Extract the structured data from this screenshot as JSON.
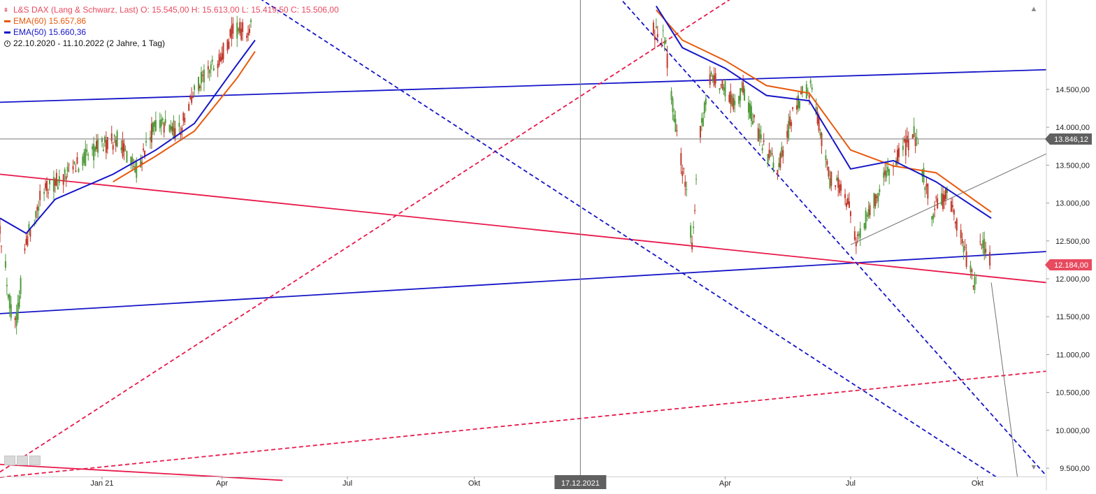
{
  "legend": {
    "main": "L&S DAX (Lang & Schwarz, Last)  O: 15.545,00  H: 15.613,00  L: 15.419,50  C: 15.506,00",
    "ema60": "EMA(60)  15.657,86",
    "ema50": "EMA(50)  15.660,36",
    "range": "22.10.2020 - 11.10.2022  (2 Jahre, 1 Tag)"
  },
  "colors": {
    "up": "#4f9a3b",
    "down": "#c0392b",
    "ema60": "#e8590c",
    "ema50": "#1515c8",
    "red_line": "#e8194b",
    "blue_line": "#1515c8",
    "gray_line": "#707070"
  },
  "icons": {
    "ohlc": "candlestick-icon",
    "range": "clock-icon",
    "scroll_up": "scroll-up-icon",
    "scroll_down": "scroll-down-icon"
  },
  "chart_data": {
    "type": "candlestick",
    "title": "L&S DAX (Lang & Schwarz, Last)",
    "y_axis": {
      "range": [
        9390,
        15680
      ],
      "ticks": [
        "9.500,00",
        "10.000,00",
        "10.500,00",
        "11.000,00",
        "11.500,00",
        "12.000,00",
        "12.500,00",
        "13.000,00",
        "13.500,00",
        "14.000,00",
        "14.500,00"
      ],
      "tick_values": [
        9500,
        10000,
        10500,
        11000,
        11500,
        12000,
        12500,
        13000,
        13500,
        14000,
        14500
      ],
      "side": "right"
    },
    "x_axis": {
      "range": [
        "2020-10-22",
        "2022-11-20"
      ],
      "ticks": [
        {
          "label": "Jan 21",
          "date": "2021-01-04"
        },
        {
          "label": "Apr",
          "date": "2021-04-01"
        },
        {
          "label": "Jul",
          "date": "2021-07-01"
        },
        {
          "label": "Okt",
          "date": "2021-10-01"
        },
        {
          "label": "Apr",
          "date": "2022-04-01"
        },
        {
          "label": "Jul",
          "date": "2022-07-01"
        },
        {
          "label": "Okt",
          "date": "2022-10-01"
        }
      ]
    },
    "crosshair": {
      "date": "2021-12-17",
      "date_label": "17.12.2021",
      "price": 13846.12,
      "price_label": "13.846,12"
    },
    "last_price": {
      "value": 12184.0,
      "label": "12.184,00"
    },
    "price_path": [
      [
        "2020-10-22",
        12700
      ],
      [
        "2020-10-30",
        11550
      ],
      [
        "2020-11-03",
        11420
      ],
      [
        "2020-11-10",
        12500
      ],
      [
        "2020-11-24",
        13250
      ],
      [
        "2020-12-04",
        13280
      ],
      [
        "2020-12-31",
        13720
      ],
      [
        "2021-01-15",
        13850
      ],
      [
        "2021-01-29",
        13450
      ],
      [
        "2021-02-12",
        14050
      ],
      [
        "2021-03-01",
        13950
      ],
      [
        "2021-03-12",
        14480
      ],
      [
        "2021-03-29",
        14900
      ],
      [
        "2021-04-09",
        15250
      ],
      [
        "2021-04-23",
        15300
      ],
      [
        "2022-02-08",
        15300
      ],
      [
        "2022-02-16",
        15150
      ],
      [
        "2022-02-24",
        14000
      ],
      [
        "2022-03-02",
        13350
      ],
      [
        "2022-03-08",
        12500
      ],
      [
        "2022-03-14",
        13900
      ],
      [
        "2022-03-22",
        14700
      ],
      [
        "2022-03-30",
        14550
      ],
      [
        "2022-04-08",
        14300
      ],
      [
        "2022-04-14",
        14500
      ],
      [
        "2022-04-25",
        13900
      ],
      [
        "2022-05-09",
        13400
      ],
      [
        "2022-05-18",
        14050
      ],
      [
        "2022-05-27",
        14450
      ],
      [
        "2022-06-03",
        14500
      ],
      [
        "2022-06-16",
        13300
      ],
      [
        "2022-06-27",
        13150
      ],
      [
        "2022-07-05",
        12500
      ],
      [
        "2022-07-15",
        12900
      ],
      [
        "2022-07-29",
        13450
      ],
      [
        "2022-08-16",
        13900
      ],
      [
        "2022-08-29",
        12900
      ],
      [
        "2022-09-09",
        13100
      ],
      [
        "2022-09-16",
        12700
      ],
      [
        "2022-09-29",
        11900
      ],
      [
        "2022-10-04",
        12500
      ],
      [
        "2022-10-07",
        12400
      ],
      [
        "2022-10-11",
        12184
      ]
    ],
    "ema60_path": [
      [
        "2021-01-12",
        13280
      ],
      [
        "2021-02-12",
        13620
      ],
      [
        "2021-03-12",
        13950
      ],
      [
        "2021-04-12",
        14650
      ],
      [
        "2021-04-25",
        15000
      ],
      [
        "2022-02-10",
        15550
      ],
      [
        "2022-03-01",
        15150
      ],
      [
        "2022-04-01",
        14880
      ],
      [
        "2022-05-01",
        14550
      ],
      [
        "2022-06-01",
        14450
      ],
      [
        "2022-07-01",
        13700
      ],
      [
        "2022-08-01",
        13490
      ],
      [
        "2022-09-01",
        13400
      ],
      [
        "2022-10-11",
        12880
      ]
    ],
    "ema50_path": [
      [
        "2020-10-22",
        12800
      ],
      [
        "2020-11-10",
        12600
      ],
      [
        "2020-12-01",
        13050
      ],
      [
        "2021-01-12",
        13380
      ],
      [
        "2021-02-12",
        13700
      ],
      [
        "2021-03-12",
        14050
      ],
      [
        "2021-04-10",
        14780
      ],
      [
        "2021-04-25",
        15150
      ],
      [
        "2022-02-10",
        15600
      ],
      [
        "2022-03-01",
        15050
      ],
      [
        "2022-04-01",
        14780
      ],
      [
        "2022-05-01",
        14420
      ],
      [
        "2022-06-01",
        14350
      ],
      [
        "2022-07-01",
        13450
      ],
      [
        "2022-08-01",
        13560
      ],
      [
        "2022-09-01",
        13280
      ],
      [
        "2022-10-11",
        12800
      ]
    ],
    "trendlines": [
      {
        "style": "solid",
        "color": "blue",
        "from": [
          "2020-10-22",
          14330
        ],
        "to": [
          "2022-11-20",
          14760
        ]
      },
      {
        "style": "solid",
        "color": "blue",
        "from": [
          "2020-10-22",
          11540
        ],
        "to": [
          "2022-11-20",
          12360
        ]
      },
      {
        "style": "solid",
        "color": "red",
        "from": [
          "2020-10-22",
          13380
        ],
        "to": [
          "2022-11-20",
          11950
        ]
      },
      {
        "style": "solid",
        "color": "red",
        "from": [
          "2020-10-22",
          9550
        ],
        "to": [
          "2021-05-15",
          9340
        ]
      },
      {
        "style": "dashed",
        "color": "red",
        "from": [
          "2020-10-22",
          9450
        ],
        "to": [
          "2022-05-18",
          16200
        ]
      },
      {
        "style": "dashed",
        "color": "red",
        "from": [
          "2020-10-22",
          9380
        ],
        "to": [
          "2022-11-20",
          10780
        ]
      },
      {
        "style": "dashed",
        "color": "blue",
        "from": [
          "2021-04-20",
          15800
        ],
        "to": [
          "2022-10-15",
          9380
        ]
      },
      {
        "style": "dashed",
        "color": "blue",
        "from": [
          "2022-01-10",
          15800
        ],
        "to": [
          "2022-11-20",
          9400
        ]
      },
      {
        "style": "solid",
        "color": "gray",
        "from": [
          "2022-07-01",
          12450
        ],
        "to": [
          "2022-11-20",
          13650
        ]
      },
      {
        "style": "solid",
        "color": "gray",
        "from": [
          "2022-10-11",
          11950
        ],
        "to": [
          "2022-10-30",
          9380
        ]
      }
    ]
  }
}
